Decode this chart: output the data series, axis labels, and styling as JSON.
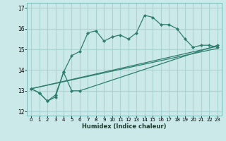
{
  "xlabel": "Humidex (Indice chaleur)",
  "background_color": "#cce9e9",
  "grid_color": "#aad4d4",
  "line_color": "#2e7d6e",
  "xlim": [
    -0.5,
    23.5
  ],
  "ylim": [
    11.8,
    17.25
  ],
  "yticks": [
    12,
    13,
    14,
    15,
    16,
    17
  ],
  "xticks": [
    0,
    1,
    2,
    3,
    4,
    5,
    6,
    7,
    8,
    9,
    10,
    11,
    12,
    13,
    14,
    15,
    16,
    17,
    18,
    19,
    20,
    21,
    22,
    23
  ],
  "line1_x": [
    0,
    1,
    2,
    3,
    4,
    5,
    6,
    7,
    8,
    9,
    10,
    11,
    12,
    13,
    14,
    15,
    16,
    17,
    18,
    19,
    20,
    21,
    22,
    23
  ],
  "line1_y": [
    13.1,
    12.9,
    12.5,
    12.7,
    13.9,
    14.7,
    14.9,
    15.8,
    15.9,
    15.4,
    15.6,
    15.7,
    15.5,
    15.8,
    16.65,
    16.55,
    16.2,
    16.2,
    16.0,
    15.5,
    15.1,
    15.2,
    15.2,
    15.1
  ],
  "line2_x": [
    0,
    1,
    2,
    3,
    4,
    5,
    6,
    23
  ],
  "line2_y": [
    13.1,
    12.9,
    12.5,
    12.8,
    13.9,
    13.0,
    13.0,
    15.2
  ],
  "line3_x": [
    0,
    23
  ],
  "line3_y": [
    13.1,
    15.15
  ],
  "line4_x": [
    0,
    23
  ],
  "line4_y": [
    13.1,
    15.05
  ]
}
